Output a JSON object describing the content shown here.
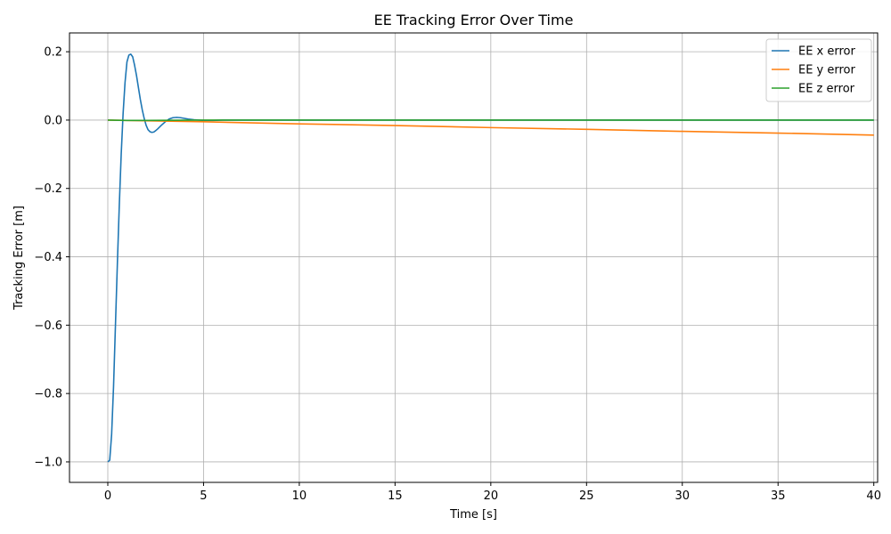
{
  "chart_data": {
    "type": "line",
    "title": "EE Tracking Error Over Time",
    "xlabel": "Time [s]",
    "ylabel": "Tracking Error [m]",
    "xlim": [
      -2,
      40.2
    ],
    "ylim": [
      -1.06,
      0.255
    ],
    "xticks": [
      0,
      5,
      10,
      15,
      20,
      25,
      30,
      35,
      40
    ],
    "yticks": [
      -1.0,
      -0.8,
      -0.6,
      -0.4,
      -0.2,
      0.0,
      0.2
    ],
    "ytick_labels": [
      "−1.0",
      "−0.8",
      "−0.6",
      "−0.4",
      "−0.2",
      "0.0",
      "0.2"
    ],
    "grid": true,
    "legend_position": "top-right",
    "series": [
      {
        "name": "EE x error",
        "color": "#1f77b4",
        "x": [
          0,
          0.1,
          0.2,
          0.3,
          0.4,
          0.5,
          0.6,
          0.7,
          0.8,
          0.9,
          1.0,
          1.1,
          1.2,
          1.3,
          1.4,
          1.5,
          1.6,
          1.7,
          1.8,
          1.9,
          2.0,
          2.1,
          2.2,
          2.3,
          2.4,
          2.5,
          2.6,
          2.8,
          3.0,
          3.2,
          3.4,
          3.6,
          3.8,
          4.0,
          4.2,
          4.5,
          5.0,
          5.5,
          6.0,
          7.0,
          8.0,
          10.0,
          15.0,
          20.0,
          25.0,
          30.0,
          35.0,
          40.0
        ],
        "y": [
          -1.0,
          -0.995,
          -0.92,
          -0.78,
          -0.6,
          -0.42,
          -0.25,
          -0.1,
          0.02,
          0.11,
          0.17,
          0.19,
          0.193,
          0.185,
          0.16,
          0.13,
          0.095,
          0.06,
          0.03,
          0.005,
          -0.015,
          -0.028,
          -0.034,
          -0.036,
          -0.035,
          -0.031,
          -0.026,
          -0.015,
          -0.005,
          0.003,
          0.007,
          0.008,
          0.007,
          0.005,
          0.003,
          0.001,
          -0.001,
          -0.001,
          0.0,
          0.0,
          0.0,
          0.0,
          0.0,
          0.0,
          0.0,
          0.0,
          0.0,
          0.0
        ]
      },
      {
        "name": "EE y error",
        "color": "#ff7f0e",
        "x": [
          0,
          5,
          10,
          15,
          20,
          25,
          30,
          35,
          40
        ],
        "y": [
          0.0,
          -0.005,
          -0.011,
          -0.016,
          -0.022,
          -0.027,
          -0.033,
          -0.038,
          -0.044
        ]
      },
      {
        "name": "EE z error",
        "color": "#2ca02c",
        "x": [
          0,
          1,
          2,
          5,
          10,
          20,
          30,
          40
        ],
        "y": [
          0.0,
          -0.001,
          -0.001,
          0.0,
          0.0,
          0.0,
          0.0,
          0.0
        ]
      }
    ]
  }
}
